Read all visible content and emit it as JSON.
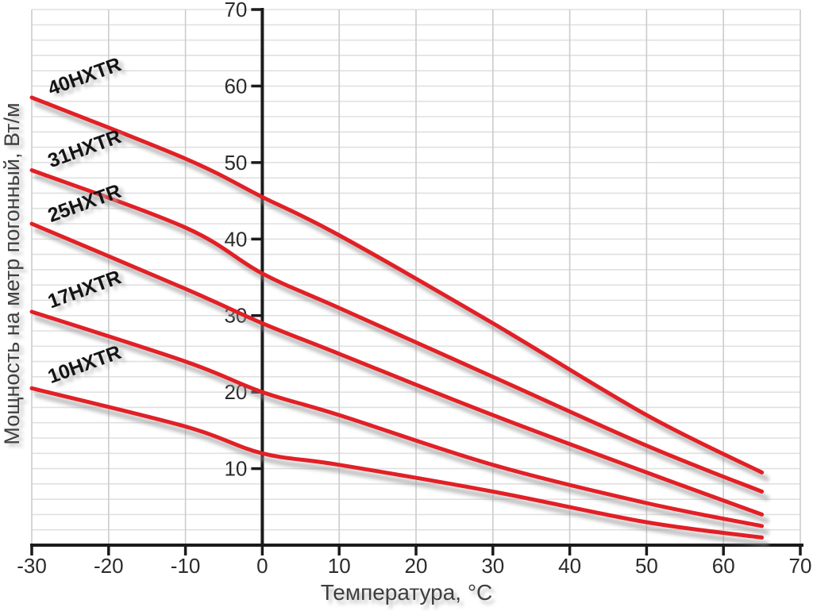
{
  "chart_data": {
    "type": "line",
    "title": "",
    "xlabel": "Температура, °С",
    "ylabel": "Мощность на метр погонный, Вт/м",
    "xlim": [
      -30,
      70
    ],
    "ylim": [
      0,
      70
    ],
    "x_ticks": [
      -30,
      -20,
      -10,
      0,
      10,
      20,
      30,
      40,
      50,
      60,
      70
    ],
    "y_ticks": [
      10,
      20,
      30,
      40,
      50,
      60,
      70
    ],
    "x_grid_step": 10,
    "y_grid_step": 2,
    "grid": true,
    "legend_position": "inline-labels-rotated",
    "line_color": "#e12026",
    "x": [
      -30,
      -10,
      0,
      10,
      30,
      50,
      65
    ],
    "series": [
      {
        "name": "40HXTR",
        "values": [
          58.5,
          50.5,
          45.5,
          40.5,
          29.0,
          17.0,
          9.5
        ]
      },
      {
        "name": "31HXTR",
        "values": [
          49.0,
          41.5,
          35.5,
          31.0,
          22.0,
          13.0,
          7.0
        ]
      },
      {
        "name": "25HXTR",
        "values": [
          42.0,
          33.5,
          29.0,
          25.0,
          17.0,
          9.5,
          4.0
        ]
      },
      {
        "name": "17HXTR",
        "values": [
          30.5,
          24.0,
          20.0,
          17.0,
          10.5,
          5.5,
          2.5
        ]
      },
      {
        "name": "10HXTR",
        "values": [
          20.5,
          15.5,
          12.0,
          10.5,
          7.0,
          3.0,
          1.0
        ]
      }
    ],
    "colors": {
      "series_line": "#e12026",
      "shadow": "#8f8f8f",
      "axis": "#1b1b1b",
      "tick_label": "#2b2b2b",
      "axis_title": "#3f3f3f",
      "grid_horizontal": "#e0e0e0",
      "grid_vertical": "#cccccc",
      "series_label": "#141414"
    }
  }
}
